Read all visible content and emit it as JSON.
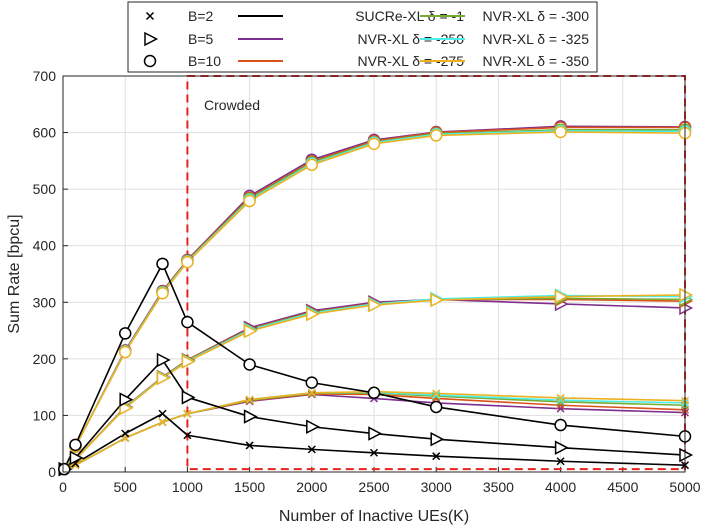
{
  "chart_data": {
    "type": "line",
    "title": "",
    "xlabel": "Number of Inactive UEs(K)",
    "ylabel": "Sum Rate [bpcu]",
    "xlim": [
      0,
      5000
    ],
    "ylim": [
      0,
      700
    ],
    "xticks": [
      "0",
      "500",
      "1000",
      "1500",
      "2000",
      "2500",
      "3000",
      "3500",
      "4000",
      "4500",
      "5000"
    ],
    "yticks": [
      "0",
      "100",
      "200",
      "300",
      "400",
      "500",
      "600",
      "700"
    ],
    "grid": true,
    "x": [
      10,
      100,
      500,
      800,
      1000,
      1500,
      2000,
      2500,
      3000,
      4000,
      5000
    ],
    "annotation": {
      "text": "Crowded",
      "region_x": [
        1000,
        5000
      ],
      "region_y": [
        5,
        700
      ]
    },
    "legend": {
      "placement": "top",
      "markers": [
        {
          "label": "B=2",
          "marker": "x"
        },
        {
          "label": "B=5",
          "marker": "triangle-right"
        },
        {
          "label": "B=10",
          "marker": "circle"
        }
      ],
      "lines": [
        {
          "label": "SUCRe-XL δ = -1",
          "color": "#000000"
        },
        {
          "label": "NVR-XL δ = -250",
          "color": "#7E2F8E"
        },
        {
          "label": "NVR-XL δ = -275",
          "color": "#D95319"
        },
        {
          "label": "NVR-XL δ = -300",
          "color": "#77AC30"
        },
        {
          "label": "NVR-XL δ = -325",
          "color": "#4DEEEA"
        },
        {
          "label": "NVR-XL δ = -350",
          "color": "#EDB120"
        }
      ]
    },
    "series": [
      {
        "name": "SUCRe-XL δ = -1, B=2",
        "color": "#000000",
        "marker": "x",
        "values": [
          5,
          15,
          68,
          103,
          65,
          47,
          40,
          34,
          28,
          19,
          12
        ]
      },
      {
        "name": "SUCRe-XL δ = -1, B=5",
        "color": "#000000",
        "marker": "triangle-right",
        "values": [
          5,
          25,
          128,
          198,
          132,
          98,
          80,
          68,
          58,
          43,
          30
        ]
      },
      {
        "name": "SUCRe-XL δ = -1, B=10",
        "color": "#000000",
        "marker": "circle",
        "values": [
          5,
          48,
          245,
          368,
          265,
          190,
          158,
          140,
          115,
          83,
          63
        ]
      },
      {
        "name": "NVR-XL δ = -250, B=2",
        "color": "#7E2F8E",
        "marker": "x",
        "values": [
          5,
          12,
          60,
          88,
          103,
          125,
          137,
          130,
          122,
          112,
          105
        ]
      },
      {
        "name": "NVR-XL δ = -275, B=2",
        "color": "#D95319",
        "marker": "x",
        "values": [
          5,
          12,
          60,
          88,
          103,
          126,
          138,
          137,
          130,
          118,
          110
        ]
      },
      {
        "name": "NVR-XL δ = -300, B=2",
        "color": "#77AC30",
        "marker": "x",
        "values": [
          5,
          12,
          60,
          88,
          103,
          127,
          139,
          140,
          134,
          124,
          118
        ]
      },
      {
        "name": "NVR-XL δ = -325, B=2",
        "color": "#4DEEEA",
        "marker": "x",
        "values": [
          5,
          12,
          60,
          88,
          103,
          128,
          140,
          141,
          136,
          127,
          122
        ]
      },
      {
        "name": "NVR-XL δ = -350, B=2",
        "color": "#EDB120",
        "marker": "x",
        "values": [
          5,
          12,
          60,
          88,
          103,
          128,
          140,
          142,
          139,
          131,
          126
        ]
      },
      {
        "name": "NVR-XL δ = -250, B=5",
        "color": "#7E2F8E",
        "marker": "triangle-right",
        "values": [
          5,
          22,
          115,
          168,
          198,
          255,
          285,
          300,
          305,
          297,
          290
        ]
      },
      {
        "name": "NVR-XL δ = -275, B=5",
        "color": "#D95319",
        "marker": "triangle-right",
        "values": [
          5,
          22,
          115,
          168,
          198,
          253,
          283,
          298,
          305,
          305,
          302
        ]
      },
      {
        "name": "NVR-XL δ = -300, B=5",
        "color": "#77AC30",
        "marker": "triangle-right",
        "values": [
          5,
          22,
          114,
          167,
          197,
          252,
          282,
          297,
          305,
          307,
          305
        ]
      },
      {
        "name": "NVR-XL δ = -325, B=5",
        "color": "#4DEEEA",
        "marker": "triangle-right",
        "values": [
          5,
          22,
          114,
          167,
          196,
          251,
          281,
          297,
          306,
          312,
          310
        ]
      },
      {
        "name": "NVR-XL δ = -350, B=5",
        "color": "#EDB120",
        "marker": "triangle-right",
        "values": [
          5,
          22,
          113,
          166,
          195,
          249,
          279,
          295,
          304,
          310,
          313
        ]
      },
      {
        "name": "NVR-XL δ = -250, B=10",
        "color": "#7E2F8E",
        "marker": "circle",
        "values": [
          5,
          45,
          215,
          320,
          375,
          488,
          552,
          587,
          601,
          611,
          610
        ]
      },
      {
        "name": "NVR-XL δ = -275, B=10",
        "color": "#D95319",
        "marker": "circle",
        "values": [
          5,
          45,
          214,
          319,
          374,
          485,
          549,
          585,
          600,
          609,
          609
        ]
      },
      {
        "name": "NVR-XL δ = -300, B=10",
        "color": "#77AC30",
        "marker": "circle",
        "values": [
          5,
          45,
          213,
          318,
          373,
          483,
          547,
          583,
          598,
          605,
          605
        ]
      },
      {
        "name": "NVR-XL δ = -325, B=10",
        "color": "#4DEEEA",
        "marker": "circle",
        "values": [
          5,
          45,
          213,
          317,
          372,
          481,
          545,
          582,
          597,
          603,
          602
        ]
      },
      {
        "name": "NVR-XL δ = -350, B=10",
        "color": "#EDB120",
        "marker": "circle",
        "values": [
          5,
          45,
          212,
          316,
          371,
          479,
          543,
          580,
          595,
          601,
          599
        ]
      }
    ]
  }
}
